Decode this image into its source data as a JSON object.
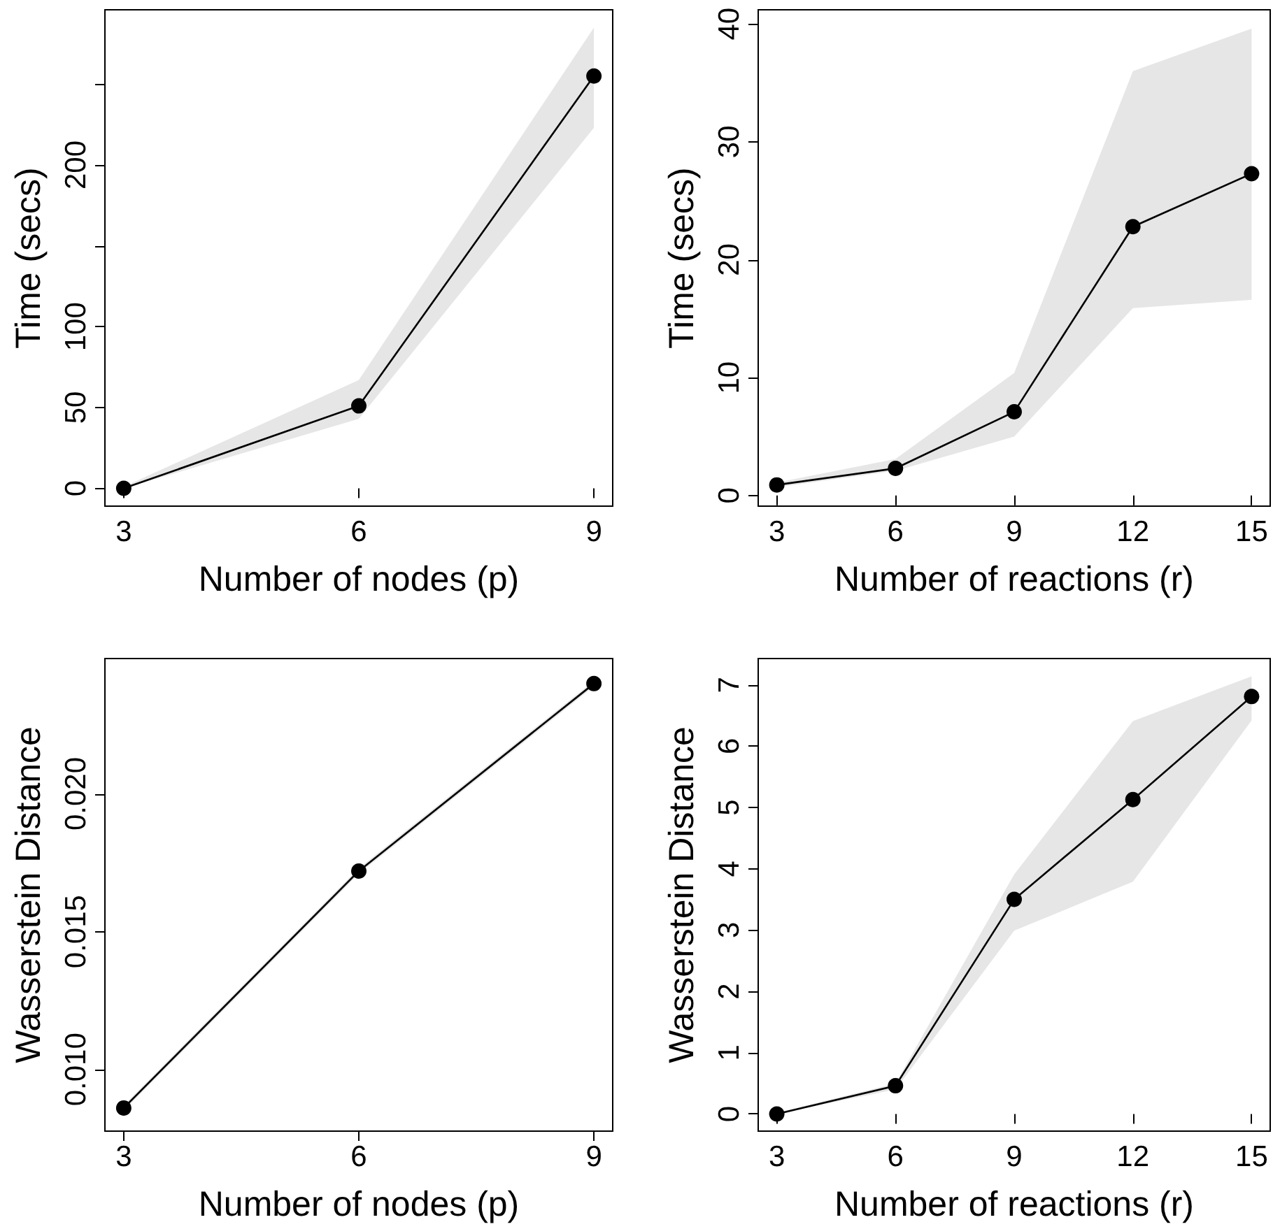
{
  "chart_data": [
    {
      "type": "line",
      "xlabel": "Number of nodes (p)",
      "ylabel": "Time (secs)",
      "x": [
        3,
        6,
        9
      ],
      "xlim": [
        2.76,
        9.24
      ],
      "xticks": [
        3,
        6,
        9
      ],
      "ylim": [
        -11,
        296
      ],
      "yticks": [
        0,
        50,
        100,
        {
          "value": 150,
          "label": null
        },
        200,
        {
          "value": 250,
          "label": null
        }
      ],
      "marker": "circle",
      "grid": false,
      "series": [
        {
          "color": "#000000",
          "values": [
            0,
            51,
            255
          ],
          "lower": [
            0,
            43,
            223
          ],
          "upper": [
            1,
            67,
            285
          ]
        }
      ]
    },
    {
      "type": "line",
      "xlabel": "Number of reactions (r)",
      "ylabel": "Time (secs)",
      "x": [
        3,
        6,
        9,
        12,
        15
      ],
      "xlim": [
        2.53,
        15.47
      ],
      "xticks": [
        3,
        6,
        9,
        12,
        15
      ],
      "ylim": [
        -0.9,
        41.2
      ],
      "yticks": [
        0,
        10,
        20,
        30,
        40
      ],
      "marker": "circle",
      "grid": false,
      "series": [
        {
          "color": "#000000",
          "values": [
            0.9,
            2.3,
            7.1,
            22.8,
            27.3
          ],
          "lower": [
            0.7,
            2.1,
            5.0,
            15.9,
            16.6
          ],
          "upper": [
            1.1,
            3.1,
            10.4,
            36.0,
            39.6
          ]
        }
      ]
    },
    {
      "type": "line",
      "xlabel": "Number of nodes (p)",
      "ylabel": "Wasserstein Distance",
      "x": [
        3,
        6,
        9
      ],
      "xlim": [
        2.76,
        9.24
      ],
      "xticks": [
        3,
        6,
        9
      ],
      "ylim": [
        0.00776,
        0.02491
      ],
      "yticks": [
        {
          "value": 0.01,
          "label": "0.010"
        },
        0.015,
        {
          "value": 0.02,
          "label": "0.020"
        }
      ],
      "marker": "circle",
      "grid": false,
      "series": [
        {
          "color": "#000000",
          "values": [
            0.0086,
            0.0172,
            0.024
          ],
          "lower": [
            0.0085,
            0.0171,
            0.0239
          ],
          "upper": [
            0.0087,
            0.0173,
            0.0241
          ]
        }
      ]
    },
    {
      "type": "line",
      "xlabel": "Number of reactions (r)",
      "ylabel": "Wasserstein Distance",
      "x": [
        3,
        6,
        9,
        12,
        15
      ],
      "xlim": [
        2.53,
        15.47
      ],
      "xticks": [
        3,
        6,
        9,
        12,
        15
      ],
      "ylim": [
        -0.28,
        7.43
      ],
      "yticks": [
        0,
        1,
        2,
        3,
        4,
        5,
        6,
        7
      ],
      "marker": "circle",
      "grid": false,
      "series": [
        {
          "color": "#000000",
          "values": [
            0,
            0.46,
            3.5,
            5.13,
            6.81
          ],
          "lower": [
            0,
            0.4,
            2.99,
            3.79,
            6.42
          ],
          "upper": [
            0.02,
            0.5,
            3.91,
            6.41,
            7.14
          ]
        }
      ]
    }
  ]
}
